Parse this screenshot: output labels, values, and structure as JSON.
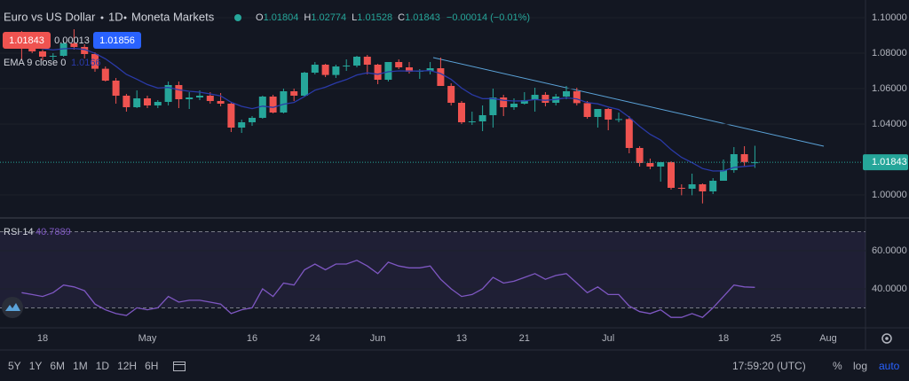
{
  "chart_data": {
    "type": "candlestick",
    "title": "Euro vs US Dollar",
    "interval": "1D",
    "broker": "Moneta Markets",
    "categories": [
      null,
      null,
      "18",
      null,
      null,
      null,
      null,
      null,
      null,
      null,
      null,
      null,
      "May",
      null,
      null,
      null,
      null,
      null,
      null,
      null,
      null,
      null,
      "16",
      null,
      null,
      null,
      null,
      null,
      "24",
      null,
      null,
      null,
      null,
      null,
      "Jun",
      null,
      null,
      null,
      null,
      null,
      null,
      null,
      "13",
      null,
      null,
      null,
      null,
      null,
      "21",
      null,
      null,
      null,
      null,
      null,
      null,
      null,
      "Jul",
      null,
      null,
      null,
      null,
      null,
      null,
      null,
      null,
      null,
      null,
      "18",
      null,
      null,
      null,
      null,
      "25",
      null,
      null,
      null,
      null,
      "Aug"
    ],
    "open": [
      1.089,
      1.0825,
      1.081,
      1.078,
      1.0785,
      1.0855,
      1.0835,
      1.0795,
      1.0712,
      1.0645,
      1.056,
      1.0495,
      1.0545,
      1.0505,
      1.0525,
      1.062,
      1.054,
      1.055,
      1.056,
      1.053,
      1.0515,
      1.038,
      1.041,
      1.0435,
      1.0555,
      1.0465,
      1.0585,
      1.056,
      1.069,
      1.0735,
      1.0677,
      1.0725,
      1.073,
      1.078,
      1.0735,
      1.065,
      1.075,
      1.072,
      1.0695,
      1.07,
      1.0715,
      1.0615,
      1.052,
      1.041,
      1.0415,
      1.045,
      1.055,
      1.0495,
      1.0515,
      1.0535,
      1.0565,
      1.052,
      1.0555,
      1.0585,
      1.0518,
      1.044,
      1.0485,
      1.0425,
      1.0428,
      1.0265,
      1.018,
      1.016,
      1.0185,
      1.004,
      1.0035,
      1.006,
      1.002,
      1.008,
      1.014,
      1.023,
      1.01804,
      null,
      null,
      null,
      null,
      null,
      null,
      null
    ],
    "high": [
      1.0925,
      1.0835,
      1.082,
      1.08,
      1.087,
      1.0935,
      1.085,
      1.0805,
      1.0725,
      1.066,
      1.057,
      1.059,
      1.056,
      1.0535,
      1.064,
      1.064,
      1.058,
      1.059,
      1.058,
      1.0575,
      1.052,
      1.0425,
      1.0445,
      1.056,
      1.0565,
      1.06,
      1.06,
      1.0695,
      1.075,
      1.074,
      1.0735,
      1.0765,
      1.0785,
      1.079,
      1.074,
      1.075,
      1.0765,
      1.075,
      1.071,
      1.075,
      1.0775,
      1.063,
      1.053,
      1.047,
      1.0505,
      1.06,
      1.0565,
      1.0545,
      1.058,
      1.0605,
      1.058,
      1.057,
      1.0615,
      1.0605,
      1.053,
      1.0485,
      1.049,
      1.0465,
      1.0445,
      1.0275,
      1.0205,
      1.0185,
      1.019,
      1.006,
      1.012,
      1.0065,
      1.0095,
      1.02,
      1.027,
      1.0275,
      1.02774,
      null,
      null,
      null,
      null,
      null,
      null,
      null
    ],
    "low": [
      1.076,
      1.08,
      1.076,
      1.076,
      1.078,
      1.082,
      1.077,
      1.0695,
      1.064,
      1.0515,
      1.047,
      1.049,
      1.049,
      1.049,
      1.0505,
      1.049,
      1.0485,
      1.0535,
      1.0515,
      1.05,
      1.0355,
      1.035,
      1.039,
      1.043,
      1.046,
      1.046,
      1.053,
      1.0555,
      1.068,
      1.0665,
      1.066,
      1.07,
      1.072,
      1.068,
      1.0625,
      1.064,
      1.071,
      1.0685,
      1.0655,
      1.068,
      1.0615,
      1.0505,
      1.04,
      1.0395,
      1.036,
      1.038,
      1.0445,
      1.048,
      1.051,
      1.047,
      1.05,
      1.0505,
      1.054,
      1.0505,
      1.043,
      1.038,
      1.0365,
      1.041,
      1.0235,
      1.016,
      1.0145,
      1.0075,
      1.003,
      0.9998,
      0.9998,
      0.9952,
      1.0005,
      1.008,
      1.0125,
      1.016,
      1.01528,
      null,
      null,
      null,
      null,
      null,
      null,
      null
    ],
    "close": [
      1.0825,
      1.081,
      1.078,
      1.0785,
      1.0855,
      1.0835,
      1.0795,
      1.0712,
      1.0645,
      1.056,
      1.0495,
      1.0545,
      1.0505,
      1.0525,
      1.062,
      1.054,
      1.055,
      1.056,
      1.053,
      1.0515,
      1.038,
      1.041,
      1.0435,
      1.0555,
      1.0465,
      1.0585,
      1.056,
      1.069,
      1.0735,
      1.0677,
      1.0725,
      1.073,
      1.078,
      1.0735,
      1.065,
      1.075,
      1.072,
      1.0695,
      1.07,
      1.0715,
      1.0615,
      1.052,
      1.041,
      1.0415,
      1.045,
      1.055,
      1.0495,
      1.0515,
      1.0535,
      1.0565,
      1.052,
      1.0555,
      1.0585,
      1.0518,
      1.044,
      1.0485,
      1.0425,
      1.0428,
      1.0265,
      1.018,
      1.016,
      1.0185,
      1.004,
      1.0035,
      1.006,
      1.002,
      1.008,
      1.014,
      1.023,
      1.01857,
      1.01843,
      null,
      null,
      null,
      null,
      null,
      null,
      null
    ],
    "up_color": "#26a69a",
    "down_color": "#ef5350",
    "ylim": [
      0.9875,
      1.11
    ],
    "yticks": [
      {
        "value": 1.0,
        "label": "1.00000"
      },
      {
        "value": 1.04,
        "label": "1.04000"
      },
      {
        "value": 1.06,
        "label": "1.06000"
      },
      {
        "value": 1.08,
        "label": "1.08000"
      },
      {
        "value": 1.1,
        "label": "1.10000"
      }
    ],
    "grid": true,
    "legend": {
      "ohlc_labels": [
        "O",
        "H",
        "L",
        "C"
      ],
      "change_label": "−0.00014 (−0.01%)",
      "sell": 1.01843,
      "spread": 0.00013,
      "buy": 1.01856
    },
    "ema": {
      "name": "EMA 9 close 0",
      "color": "#2a3aa8",
      "values": [
        1.0845,
        1.0838,
        1.0826,
        1.0818,
        1.0825,
        1.0827,
        1.0821,
        1.0799,
        1.0768,
        1.0726,
        1.068,
        1.0653,
        1.0623,
        1.0603,
        1.0607,
        1.0593,
        1.0585,
        1.058,
        1.057,
        1.0559,
        1.0523,
        1.05,
        1.0487,
        1.0501,
        1.0494,
        1.0512,
        1.0522,
        1.0555,
        1.0591,
        1.0608,
        1.0632,
        1.0651,
        1.0677,
        1.0689,
        1.0681,
        1.0695,
        1.07,
        1.0699,
        1.0699,
        1.0702,
        1.0685,
        1.0652,
        1.0603,
        1.0566,
        1.0543,
        1.0544,
        1.0534,
        1.053,
        1.0531,
        1.0538,
        1.0534,
        1.0539,
        1.0548,
        1.0542,
        1.0521,
        1.0514,
        1.0496,
        1.0482,
        1.0439,
        1.0387,
        1.0342,
        1.031,
        1.0256,
        1.0212,
        1.0182,
        1.0149,
        1.0135,
        1.0136,
        1.0155,
        1.0161,
        1.0166,
        null,
        null,
        null,
        null,
        null,
        null,
        null
      ]
    },
    "rsi": {
      "name": "RSI 14",
      "color": "#7e57c2",
      "values": [
        38,
        37,
        36,
        38,
        42,
        41,
        39,
        32,
        29,
        27,
        26,
        30,
        29,
        30,
        36,
        33,
        34,
        34,
        33,
        32,
        27,
        29,
        30,
        40,
        36,
        43,
        42,
        50,
        53,
        50,
        53,
        53,
        55,
        52,
        48,
        54,
        52,
        51,
        51,
        52,
        45,
        40,
        36,
        37,
        40,
        46,
        43,
        44,
        46,
        48,
        45,
        47,
        48,
        43,
        38,
        41,
        37,
        37,
        31,
        28,
        27,
        29,
        25,
        25,
        27,
        25,
        30,
        36,
        42,
        41,
        40.7889,
        null,
        null,
        null,
        null,
        null,
        null,
        null
      ],
      "ylim": [
        19.5,
        76.3
      ],
      "yticks": [
        {
          "value": 40,
          "label": "40.0000"
        },
        {
          "value": 60,
          "label": "60.0000"
        }
      ],
      "bands": [
        30,
        70
      ]
    }
  },
  "toolbar": {
    "ranges": [
      "5Y",
      "1Y",
      "6M",
      "1M",
      "1D",
      "12H",
      "6H"
    ],
    "time": "17:59:20 (UTC)",
    "percent": "%",
    "log": "log",
    "auto": "auto"
  }
}
